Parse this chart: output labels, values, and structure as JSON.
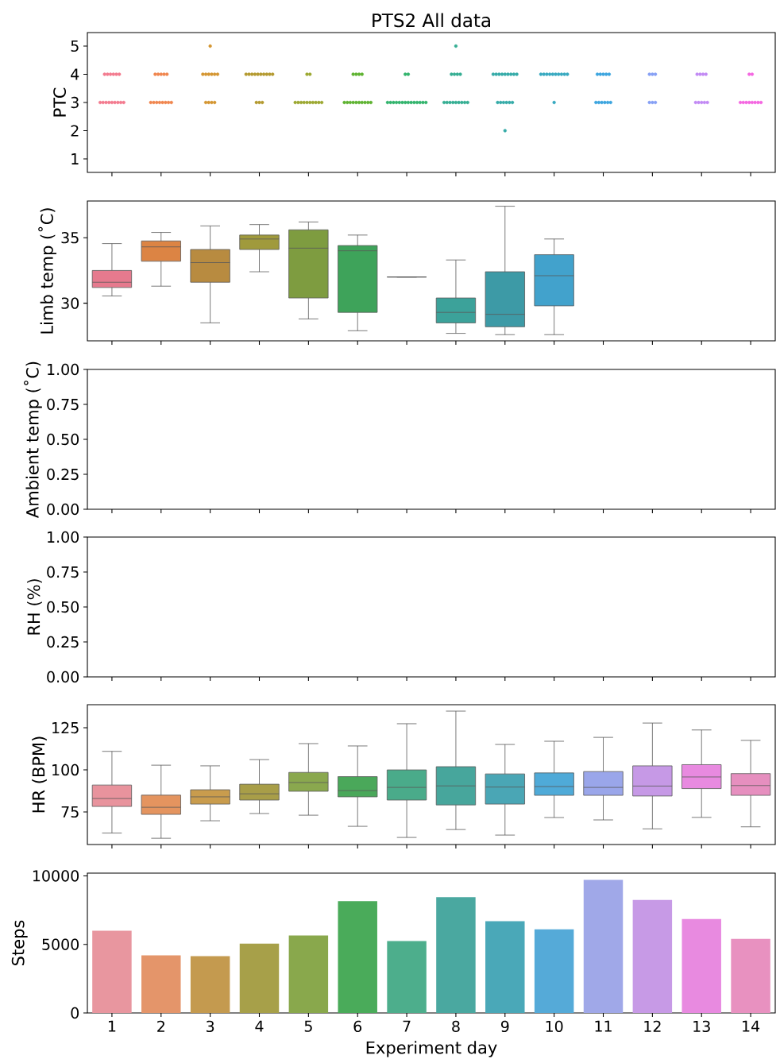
{
  "chart_data": [
    {
      "type": "scatter",
      "title": "PTS2 All data",
      "ylabel": "PTC",
      "marker": "circle",
      "tick_labels": "y",
      "categories": [
        "1",
        "2",
        "3",
        "4",
        "5",
        "6",
        "7",
        "8",
        "9",
        "10",
        "11",
        "12",
        "13",
        "14"
      ],
      "ylim": [
        0.52,
        5.48
      ],
      "yticks": [
        1,
        2,
        3,
        4,
        5
      ],
      "series": [
        {
          "color": "#f37b8f",
          "x": [
            "1",
            "1",
            "1",
            "1",
            "1",
            "1",
            "1",
            "1",
            "1",
            "1",
            "1",
            "1",
            "1",
            "1",
            "1"
          ],
          "values": [
            4,
            4,
            4,
            4,
            4,
            4,
            3,
            3,
            3,
            3,
            3,
            3,
            3,
            3,
            3
          ]
        },
        {
          "color": "#f0864f",
          "x": [
            "2",
            "2",
            "2",
            "2",
            "2",
            "2",
            "2",
            "2",
            "2",
            "2",
            "2",
            "2",
            "2"
          ],
          "values": [
            4,
            4,
            4,
            4,
            4,
            3,
            3,
            3,
            3,
            3,
            3,
            3,
            3
          ]
        },
        {
          "color": "#d49632",
          "x": [
            "3",
            "3",
            "3",
            "3",
            "3",
            "3",
            "3",
            "3",
            "3",
            "3",
            "3"
          ],
          "values": [
            5,
            4,
            4,
            4,
            4,
            4,
            4,
            3,
            3,
            3,
            3
          ]
        },
        {
          "color": "#b49a31",
          "x": [
            "4",
            "4",
            "4",
            "4",
            "4",
            "4",
            "4",
            "4",
            "4",
            "4",
            "4",
            "4",
            "4"
          ],
          "values": [
            4,
            4,
            4,
            4,
            4,
            4,
            4,
            4,
            4,
            4,
            3,
            3,
            3
          ]
        },
        {
          "color": "#9ca832",
          "x": [
            "5",
            "5",
            "5",
            "5",
            "5",
            "5",
            "5",
            "5",
            "5",
            "5",
            "5",
            "5"
          ],
          "values": [
            4,
            4,
            3,
            3,
            3,
            3,
            3,
            3,
            3,
            3,
            3,
            3
          ]
        },
        {
          "color": "#5fb332",
          "x": [
            "6",
            "6",
            "6",
            "6",
            "6",
            "6",
            "6",
            "6",
            "6",
            "6",
            "6",
            "6",
            "6",
            "6"
          ],
          "values": [
            4,
            4,
            4,
            4,
            3,
            3,
            3,
            3,
            3,
            3,
            3,
            3,
            3,
            3
          ]
        },
        {
          "color": "#33b46d",
          "x": [
            "7",
            "7",
            "7",
            "7",
            "7",
            "7",
            "7",
            "7",
            "7",
            "7",
            "7",
            "7",
            "7",
            "7",
            "7",
            "7"
          ],
          "values": [
            4,
            4,
            3,
            3,
            3,
            3,
            3,
            3,
            3,
            3,
            3,
            3,
            3,
            3,
            3,
            3
          ]
        },
        {
          "color": "#35ae93",
          "x": [
            "8",
            "8",
            "8",
            "8",
            "8",
            "8",
            "8",
            "8",
            "8",
            "8",
            "8",
            "8",
            "8",
            "8"
          ],
          "values": [
            5,
            4,
            4,
            4,
            4,
            3,
            3,
            3,
            3,
            3,
            3,
            3,
            3,
            3
          ]
        },
        {
          "color": "#36aba8",
          "x": [
            "9",
            "9",
            "9",
            "9",
            "9",
            "9",
            "9",
            "9",
            "9",
            "9",
            "9",
            "9",
            "9",
            "9",
            "9",
            "9"
          ],
          "values": [
            4,
            4,
            4,
            4,
            4,
            4,
            4,
            4,
            4,
            3,
            3,
            3,
            3,
            3,
            3,
            2
          ]
        },
        {
          "color": "#38a9c0",
          "x": [
            "10",
            "10",
            "10",
            "10",
            "10",
            "10",
            "10",
            "10",
            "10",
            "10",
            "10"
          ],
          "values": [
            4,
            4,
            4,
            4,
            4,
            4,
            4,
            4,
            4,
            4,
            3
          ]
        },
        {
          "color": "#3ca5df",
          "x": [
            "11",
            "11",
            "11",
            "11",
            "11",
            "11",
            "11",
            "11",
            "11",
            "11",
            "11"
          ],
          "values": [
            4,
            4,
            4,
            4,
            4,
            3,
            3,
            3,
            3,
            3,
            3
          ]
        },
        {
          "color": "#86a0f5",
          "x": [
            "12",
            "12",
            "12",
            "12",
            "12",
            "12"
          ],
          "values": [
            4,
            4,
            4,
            3,
            3,
            3
          ]
        },
        {
          "color": "#c28af4",
          "x": [
            "13",
            "13",
            "13",
            "13",
            "13",
            "13",
            "13",
            "13",
            "13"
          ],
          "values": [
            4,
            4,
            4,
            4,
            3,
            3,
            3,
            3,
            3
          ]
        },
        {
          "color": "#f467e1",
          "x": [
            "14",
            "14",
            "14",
            "14",
            "14",
            "14",
            "14",
            "14",
            "14",
            "14"
          ],
          "values": [
            4,
            4,
            3,
            3,
            3,
            3,
            3,
            3,
            3,
            3
          ]
        }
      ]
    },
    {
      "type": "box",
      "ylabel": "Limb temp (˚C)",
      "tick_labels": "y",
      "categories": [
        "1",
        "2",
        "3",
        "4",
        "5",
        "6",
        "7",
        "8",
        "9",
        "10",
        "11",
        "12",
        "13",
        "14"
      ],
      "ylim": [
        27.13,
        37.8
      ],
      "yticks": [
        30,
        35
      ],
      "colors": [
        "#e67a8e",
        "#dc8444",
        "#b88b40",
        "#a09a3c",
        "#7e9c40",
        "#3ea35a",
        null,
        "#3ca29a",
        "#3d9aa6",
        "#42a2cc",
        null,
        null,
        null,
        null
      ],
      "boxes": [
        {
          "low": 30.55,
          "q1": 31.2,
          "median": 31.6,
          "q3": 32.5,
          "high": 34.55
        },
        {
          "low": 31.3,
          "q1": 33.2,
          "median": 34.3,
          "q3": 34.75,
          "high": 35.4
        },
        {
          "low": 28.5,
          "q1": 31.6,
          "median": 33.1,
          "q3": 34.1,
          "high": 35.9
        },
        {
          "low": 32.4,
          "q1": 34.1,
          "median": 34.9,
          "q3": 35.2,
          "high": 36.0
        },
        {
          "low": 28.8,
          "q1": 30.4,
          "median": 34.2,
          "q3": 35.6,
          "high": 36.2
        },
        {
          "low": 27.9,
          "q1": 29.3,
          "median": 34.0,
          "q3": 34.4,
          "high": 35.2
        },
        {
          "low": 32.0,
          "q1": 32.0,
          "median": 32.0,
          "q3": 32.0,
          "high": 32.0
        },
        {
          "low": 27.7,
          "q1": 28.5,
          "median": 29.3,
          "q3": 30.4,
          "high": 33.3
        },
        {
          "low": 27.6,
          "q1": 28.2,
          "median": 29.15,
          "q3": 32.4,
          "high": 37.4
        },
        {
          "low": 27.6,
          "q1": 29.8,
          "median": 32.1,
          "q3": 33.7,
          "high": 34.9
        },
        null,
        null,
        null,
        null
      ]
    },
    {
      "type": "box",
      "ylabel": "Ambient temp (˚C)",
      "tick_labels": "y",
      "categories": [
        "1",
        "2",
        "3",
        "4",
        "5",
        "6",
        "7",
        "8",
        "9",
        "10",
        "11",
        "12",
        "13",
        "14"
      ],
      "ylim": [
        0,
        1
      ],
      "yticks": [
        {
          "value": 0,
          "label": "0.00"
        },
        {
          "value": 0.25,
          "label": "0.25"
        },
        {
          "value": 0.5,
          "label": "0.50"
        },
        {
          "value": 0.75,
          "label": "0.75"
        },
        {
          "value": 1,
          "label": "1.00"
        }
      ],
      "boxes": [
        null,
        null,
        null,
        null,
        null,
        null,
        null,
        null,
        null,
        null,
        null,
        null,
        null,
        null
      ]
    },
    {
      "type": "box",
      "ylabel": "RH (%)",
      "tick_labels": "y",
      "categories": [
        "1",
        "2",
        "3",
        "4",
        "5",
        "6",
        "7",
        "8",
        "9",
        "10",
        "11",
        "12",
        "13",
        "14"
      ],
      "ylim": [
        0,
        1
      ],
      "yticks": [
        {
          "value": 0,
          "label": "0.00"
        },
        {
          "value": 0.25,
          "label": "0.25"
        },
        {
          "value": 0.5,
          "label": "0.50"
        },
        {
          "value": 0.75,
          "label": "0.75"
        },
        {
          "value": 1,
          "label": "1.00"
        }
      ],
      "boxes": [
        null,
        null,
        null,
        null,
        null,
        null,
        null,
        null,
        null,
        null,
        null,
        null,
        null,
        null
      ]
    },
    {
      "type": "box",
      "ylabel": "HR (BPM)",
      "tick_labels": "y",
      "categories": [
        "1",
        "2",
        "3",
        "4",
        "5",
        "6",
        "7",
        "8",
        "9",
        "10",
        "11",
        "12",
        "13",
        "14"
      ],
      "ylim": [
        55.7,
        138.7
      ],
      "yticks": [
        75,
        100,
        125
      ],
      "colors": [
        "#e8939d",
        "#e4945f",
        "#c99c4d",
        "#a89e48",
        "#8aa84e",
        "#4aa85a",
        "#4aab8a",
        "#47a69c",
        "#4aa6b5",
        "#4faad8",
        "#9aa6ea",
        "#c699e6",
        "#e88ae0",
        "#e68fbf"
      ],
      "boxes": [
        {
          "low": 62.5,
          "q1": 78.3,
          "median": 83,
          "q3": 91,
          "high": 111
        },
        {
          "low": 59.4,
          "q1": 73.6,
          "median": 77.8,
          "q3": 85,
          "high": 102.8
        },
        {
          "low": 69.8,
          "q1": 79.7,
          "median": 84,
          "q3": 88.2,
          "high": 102.4
        },
        {
          "low": 74.1,
          "q1": 82.1,
          "median": 85.8,
          "q3": 91.5,
          "high": 106.1
        },
        {
          "low": 73.1,
          "q1": 87.3,
          "median": 92.5,
          "q3": 98.5,
          "high": 115.6
        },
        {
          "low": 66.5,
          "q1": 84,
          "median": 87.7,
          "q3": 96,
          "high": 114.2
        },
        {
          "low": 59.9,
          "q1": 82.1,
          "median": 89.6,
          "q3": 100,
          "high": 127.4
        },
        {
          "low": 64.6,
          "q1": 79.2,
          "median": 90.5,
          "q3": 101.9,
          "high": 134.9
        },
        {
          "low": 61.3,
          "q1": 79.7,
          "median": 89.8,
          "q3": 97.6,
          "high": 115.1
        },
        {
          "low": 71.7,
          "q1": 84.9,
          "median": 90.1,
          "q3": 98.2,
          "high": 117
        },
        {
          "low": 70.3,
          "q1": 84.9,
          "median": 89.6,
          "q3": 99,
          "high": 119.3
        },
        {
          "low": 65,
          "q1": 84.5,
          "median": 90.4,
          "q3": 102.4,
          "high": 127.8
        },
        {
          "low": 71.8,
          "q1": 88.9,
          "median": 95.8,
          "q3": 103.1,
          "high": 123.7
        },
        {
          "low": 66.2,
          "q1": 84.9,
          "median": 90.7,
          "q3": 97.8,
          "high": 117.5
        }
      ]
    },
    {
      "type": "bar",
      "ylabel": "Steps",
      "xlabel": "Experiment day",
      "categories": [
        "1",
        "2",
        "3",
        "4",
        "5",
        "6",
        "7",
        "8",
        "9",
        "10",
        "11",
        "12",
        "13",
        "14"
      ],
      "ylim": [
        0,
        10200
      ],
      "yticks": [
        0,
        5000,
        10000
      ],
      "values": [
        6000,
        4200,
        4150,
        5050,
        5650,
        8150,
        5250,
        8450,
        6700,
        6100,
        9700,
        8250,
        6850,
        5400
      ],
      "colors": [
        "#e8969f",
        "#e4956a",
        "#c49a4f",
        "#a7a049",
        "#89a84c",
        "#4aab5a",
        "#4dae8c",
        "#4aa8a0",
        "#4aa8b8",
        "#55aad8",
        "#a0a8e8",
        "#c79ae6",
        "#e88ae0",
        "#e891c0"
      ]
    }
  ]
}
